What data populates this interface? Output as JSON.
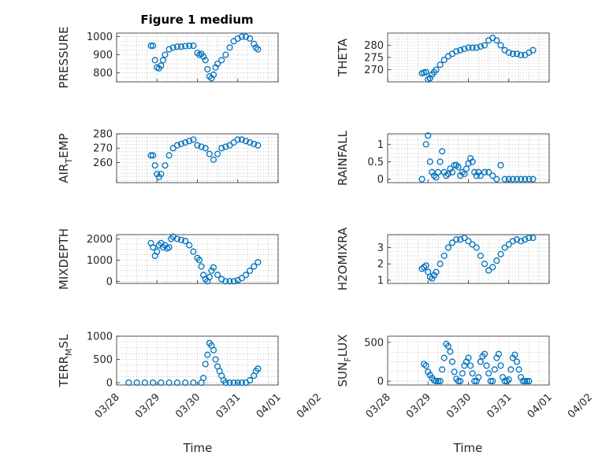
{
  "title": "Figure 1 medium",
  "colors": {
    "marker": "#0072bd",
    "axis": "#262626",
    "grid": "#bdbdbd"
  },
  "chart_data": [
    {
      "type": "scatter",
      "ylabel": "PRESSURE",
      "ylim": [
        750,
        1020
      ],
      "yticks": [
        800,
        900,
        1000
      ],
      "xlim": [
        0,
        4
      ],
      "grid": true,
      "x": [
        0.85,
        0.9,
        0.95,
        1.0,
        1.05,
        1.1,
        1.15,
        1.2,
        1.3,
        1.4,
        1.5,
        1.6,
        1.7,
        1.8,
        1.9,
        2.0,
        2.05,
        2.1,
        2.15,
        2.2,
        2.25,
        2.3,
        2.35,
        2.4,
        2.45,
        2.5,
        2.6,
        2.7,
        2.8,
        2.9,
        3.0,
        3.1,
        3.2,
        3.3,
        3.4,
        3.45,
        3.5
      ],
      "values": [
        950,
        950,
        870,
        830,
        825,
        840,
        870,
        900,
        930,
        940,
        945,
        945,
        948,
        950,
        950,
        910,
        900,
        905,
        890,
        870,
        820,
        780,
        770,
        790,
        830,
        850,
        870,
        900,
        940,
        975,
        990,
        1000,
        1000,
        990,
        960,
        940,
        930
      ]
    },
    {
      "type": "scatter",
      "ylabel": "THETA",
      "ylim": [
        265,
        285
      ],
      "yticks": [
        270,
        275,
        280
      ],
      "xlim": [
        0,
        4
      ],
      "grid": true,
      "x": [
        0.85,
        0.9,
        0.95,
        1.0,
        1.05,
        1.1,
        1.15,
        1.2,
        1.3,
        1.4,
        1.5,
        1.6,
        1.7,
        1.8,
        1.9,
        2.0,
        2.1,
        2.2,
        2.3,
        2.4,
        2.5,
        2.6,
        2.7,
        2.8,
        2.9,
        3.0,
        3.1,
        3.2,
        3.3,
        3.4,
        3.5,
        3.6
      ],
      "values": [
        268.5,
        268.8,
        269,
        266,
        266.5,
        268,
        269,
        270,
        272,
        274,
        275.5,
        276.5,
        277.5,
        278,
        278.5,
        279,
        279,
        279,
        279.5,
        280,
        282,
        283,
        282,
        280,
        278,
        277,
        276.5,
        276.5,
        276,
        276,
        277,
        278
      ]
    },
    {
      "type": "scatter",
      "ylabel": "AIR_TEMP",
      "ylim": [
        246,
        280
      ],
      "yticks": [
        260,
        270,
        280
      ],
      "xlim": [
        0,
        4
      ],
      "grid": true,
      "x": [
        0.85,
        0.9,
        0.95,
        1.0,
        1.05,
        1.1,
        1.2,
        1.3,
        1.4,
        1.5,
        1.6,
        1.7,
        1.8,
        1.9,
        2.0,
        2.1,
        2.2,
        2.3,
        2.4,
        2.5,
        2.6,
        2.7,
        2.8,
        2.9,
        3.0,
        3.1,
        3.2,
        3.3,
        3.4,
        3.5
      ],
      "values": [
        265,
        265,
        258,
        252,
        250,
        252,
        258,
        265,
        270,
        272,
        273,
        274,
        275,
        276,
        272,
        271,
        270,
        266,
        262,
        266,
        270,
        271,
        272,
        274,
        276,
        276,
        275,
        274,
        273,
        272
      ]
    },
    {
      "type": "scatter",
      "ylabel": "RAINFALL",
      "ylim": [
        -0.1,
        1.3
      ],
      "yticks": [
        0,
        0.5,
        1
      ],
      "xlim": [
        0,
        4
      ],
      "grid": true,
      "x": [
        0.85,
        0.95,
        1.0,
        1.05,
        1.1,
        1.15,
        1.2,
        1.25,
        1.3,
        1.35,
        1.4,
        1.45,
        1.5,
        1.55,
        1.6,
        1.65,
        1.7,
        1.75,
        1.8,
        1.85,
        1.9,
        1.95,
        2.0,
        2.05,
        2.1,
        2.15,
        2.2,
        2.25,
        2.3,
        2.4,
        2.5,
        2.6,
        2.7,
        2.8,
        2.9,
        3.0,
        3.1,
        3.2,
        3.3,
        3.4,
        3.5,
        3.6
      ],
      "values": [
        0,
        1.0,
        1.25,
        0.5,
        0.2,
        0.1,
        0.05,
        0.2,
        0.5,
        0.8,
        0.2,
        0.1,
        0.15,
        0.3,
        0.2,
        0.4,
        0.4,
        0.35,
        0.1,
        0.2,
        0.15,
        0.3,
        0.45,
        0.6,
        0.5,
        0.2,
        0.1,
        0.2,
        0.1,
        0.2,
        0.2,
        0.1,
        0,
        0.4,
        0,
        0,
        0,
        0,
        0,
        0,
        0,
        0
      ]
    },
    {
      "type": "scatter",
      "ylabel": "MIXDEPTH",
      "ylim": [
        -100,
        2200
      ],
      "yticks": [
        0,
        1000,
        2000
      ],
      "xlim": [
        0,
        4
      ],
      "grid": true,
      "x": [
        0.85,
        0.9,
        0.95,
        1.0,
        1.05,
        1.1,
        1.15,
        1.2,
        1.25,
        1.3,
        1.35,
        1.4,
        1.5,
        1.6,
        1.7,
        1.8,
        1.9,
        2.0,
        2.05,
        2.1,
        2.15,
        2.2,
        2.25,
        2.3,
        2.35,
        2.4,
        2.5,
        2.6,
        2.7,
        2.8,
        2.9,
        3.0,
        3.1,
        3.2,
        3.3,
        3.4,
        3.5
      ],
      "values": [
        1800,
        1600,
        1200,
        1400,
        1700,
        1800,
        1600,
        1700,
        1550,
        1600,
        2000,
        2100,
        2000,
        1950,
        1900,
        1700,
        1400,
        1100,
        1000,
        700,
        300,
        100,
        0,
        200,
        500,
        650,
        300,
        100,
        0,
        0,
        0,
        50,
        150,
        300,
        500,
        700,
        900
      ]
    },
    {
      "type": "scatter",
      "ylabel": "H2OMIXRA",
      "ylim": [
        0.8,
        3.8
      ],
      "yticks": [
        1,
        2,
        3
      ],
      "xlim": [
        0,
        4
      ],
      "grid": true,
      "x": [
        0.85,
        0.9,
        0.95,
        1.0,
        1.05,
        1.1,
        1.15,
        1.2,
        1.3,
        1.4,
        1.5,
        1.6,
        1.7,
        1.8,
        1.9,
        2.0,
        2.1,
        2.2,
        2.3,
        2.4,
        2.5,
        2.6,
        2.7,
        2.8,
        2.9,
        3.0,
        3.1,
        3.2,
        3.3,
        3.4,
        3.5,
        3.6
      ],
      "values": [
        1.7,
        1.8,
        1.9,
        1.5,
        1.2,
        1.1,
        1.3,
        1.5,
        2.0,
        2.5,
        3.0,
        3.3,
        3.5,
        3.5,
        3.6,
        3.4,
        3.2,
        3.0,
        2.5,
        2.0,
        1.6,
        1.8,
        2.2,
        2.6,
        3.0,
        3.2,
        3.4,
        3.5,
        3.4,
        3.5,
        3.6,
        3.6
      ]
    },
    {
      "type": "scatter",
      "ylabel": "TERR_MSL",
      "ylim": [
        -50,
        1000
      ],
      "yticks": [
        0,
        500,
        1000
      ],
      "xlim": [
        0,
        4
      ],
      "grid": true,
      "x": [
        0.3,
        0.5,
        0.7,
        0.9,
        1.1,
        1.3,
        1.5,
        1.7,
        1.9,
        2.1,
        2.15,
        2.2,
        2.25,
        2.3,
        2.35,
        2.4,
        2.45,
        2.5,
        2.55,
        2.6,
        2.65,
        2.7,
        2.8,
        2.9,
        3.0,
        3.1,
        3.2,
        3.3,
        3.4,
        3.45,
        3.5
      ],
      "values": [
        0,
        0,
        0,
        0,
        0,
        0,
        0,
        0,
        0,
        0,
        100,
        400,
        600,
        850,
        800,
        700,
        500,
        350,
        250,
        150,
        50,
        0,
        0,
        0,
        0,
        0,
        0,
        50,
        150,
        250,
        300
      ]
    },
    {
      "type": "scatter",
      "ylabel": "SUN_FLUX",
      "ylim": [
        -50,
        580
      ],
      "yticks": [
        0,
        500
      ],
      "xlim": [
        0,
        4
      ],
      "grid": true,
      "x": [
        0.9,
        0.95,
        1.0,
        1.05,
        1.1,
        1.15,
        1.2,
        1.25,
        1.3,
        1.35,
        1.4,
        1.45,
        1.5,
        1.55,
        1.6,
        1.65,
        1.7,
        1.75,
        1.8,
        1.85,
        1.9,
        1.95,
        2.0,
        2.05,
        2.1,
        2.15,
        2.2,
        2.25,
        2.3,
        2.35,
        2.4,
        2.45,
        2.5,
        2.55,
        2.6,
        2.65,
        2.7,
        2.75,
        2.8,
        2.85,
        2.9,
        2.95,
        3.0,
        3.05,
        3.1,
        3.15,
        3.2,
        3.25,
        3.3,
        3.35,
        3.4,
        3.45,
        3.5
      ],
      "values": [
        220,
        200,
        120,
        80,
        40,
        10,
        0,
        0,
        0,
        150,
        300,
        480,
        450,
        380,
        250,
        120,
        30,
        0,
        0,
        100,
        200,
        250,
        300,
        200,
        100,
        0,
        0,
        50,
        250,
        320,
        350,
        200,
        100,
        0,
        0,
        150,
        300,
        350,
        200,
        50,
        0,
        0,
        20,
        150,
        300,
        340,
        250,
        150,
        50,
        0,
        0,
        0,
        0
      ]
    }
  ],
  "x_tick_labels": [
    "03/28",
    "03/29",
    "03/30",
    "03/31",
    "04/01",
    "04/02"
  ],
  "x_axis_label": "Time"
}
